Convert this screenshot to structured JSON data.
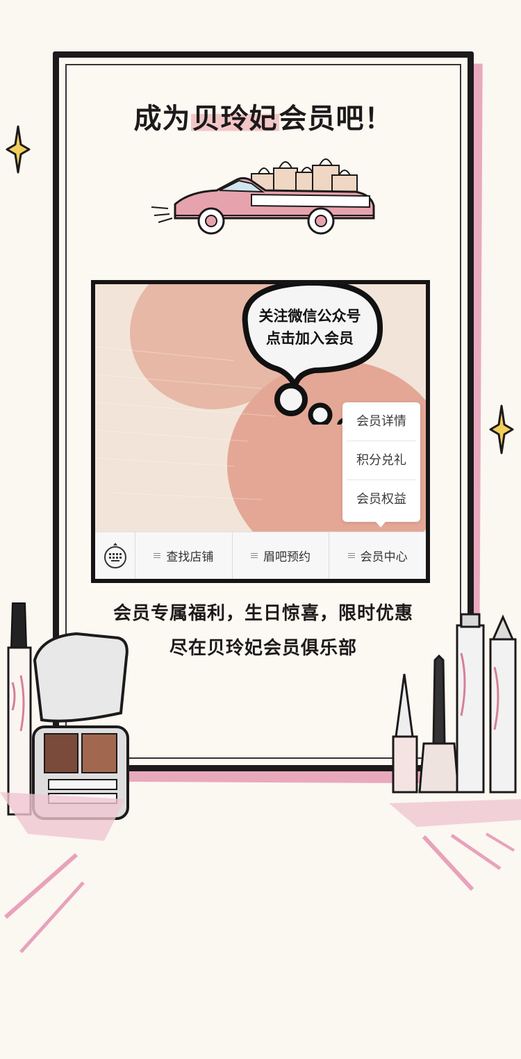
{
  "headline": {
    "before": "成为",
    "highlight": "贝玲妃",
    "after": "会员吧！"
  },
  "bubble": {
    "line1": "关注微信公众号",
    "line2": "点击加入会员"
  },
  "popup_menu": {
    "items": [
      "会员详情",
      "积分兑礼",
      "会员权益"
    ]
  },
  "menu_bar": {
    "keyboard_icon": "keyboard-icon",
    "items": [
      "查找店铺",
      "眉吧预约",
      "会员中心"
    ]
  },
  "benefits": {
    "line1": "会员专属福利，生日惊喜，限时优惠",
    "line2": "尽在贝玲妃会员俱乐部"
  },
  "colors": {
    "background": "#fbf7f1",
    "frame": "#1c1a1a",
    "accent_pink": "#e9a9bd",
    "highlight": "#f3c6c8"
  }
}
